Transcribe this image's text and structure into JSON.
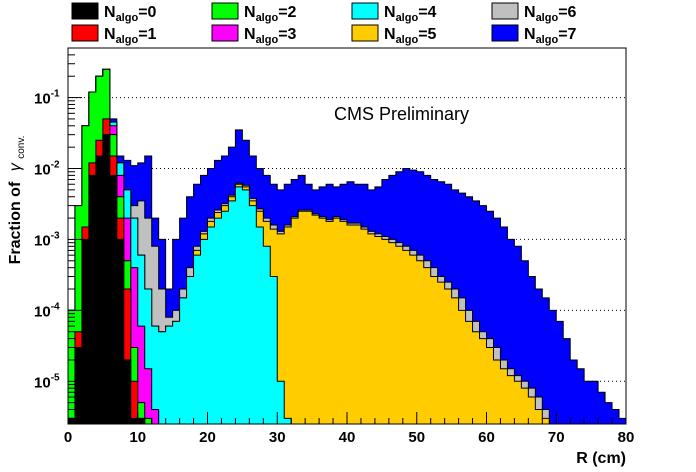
{
  "chart_data": {
    "type": "area",
    "title": "",
    "annotation": "CMS Preliminary",
    "xlabel": "R (cm)",
    "ylabel": "Fraction of",
    "ylabel_symbol": "γ",
    "ylabel_subscript": "conv.",
    "xlim": [
      0,
      80
    ],
    "ylim": [
      2.5e-06,
      0.5
    ],
    "yscale": "log",
    "grid": "horizontal dotted at decades",
    "legend_placement": "top",
    "x_ticks": [
      "0",
      "10",
      "20",
      "30",
      "40",
      "50",
      "60",
      "70",
      "80"
    ],
    "y_ticks": [
      {
        "value": 1e-05,
        "base": "10",
        "exp": "-5"
      },
      {
        "value": 0.0001,
        "base": "10",
        "exp": "-4"
      },
      {
        "value": 0.001,
        "base": "10",
        "exp": "-3"
      },
      {
        "value": 0.01,
        "base": "10",
        "exp": "-2"
      },
      {
        "value": 0.1,
        "base": "10",
        "exp": "-1"
      }
    ],
    "stacking": "cumulative",
    "series": [
      {
        "label_main": "N",
        "label_sub": "algo",
        "label_value": "=0",
        "color": "#000000",
        "points": [
          [
            0,
            3e-06
          ],
          [
            1,
            3e-05
          ],
          [
            2,
            0.001
          ],
          [
            3,
            0.008
          ],
          [
            4,
            0.015
          ],
          [
            5,
            0.03
          ],
          [
            6,
            0.008
          ],
          [
            7,
            0.001
          ],
          [
            8,
            2e-05
          ],
          [
            9,
            3e-06
          ],
          [
            10,
            3e-06
          ]
        ]
      },
      {
        "label_main": "N",
        "label_sub": "algo",
        "label_value": "=1",
        "color": "#ff0000",
        "points": [
          [
            0,
            3e-06
          ],
          [
            1,
            5e-05
          ],
          [
            2,
            0.0015
          ],
          [
            3,
            0.012
          ],
          [
            4,
            0.025
          ],
          [
            5,
            0.05
          ],
          [
            6,
            0.015
          ],
          [
            7,
            0.002
          ],
          [
            8,
            0.0002
          ],
          [
            9,
            1e-05
          ],
          [
            10,
            3e-06
          ]
        ]
      },
      {
        "label_main": "N",
        "label_sub": "algo",
        "label_value": "=2",
        "color": "#00ff00",
        "points": [
          [
            0,
            0.0001
          ],
          [
            1,
            0.003
          ],
          [
            2,
            0.04
          ],
          [
            3,
            0.12
          ],
          [
            4,
            0.2
          ],
          [
            5,
            0.25
          ],
          [
            6,
            0.03
          ],
          [
            7,
            0.004
          ],
          [
            8,
            0.0005
          ],
          [
            9,
            3e-05
          ],
          [
            10,
            5e-06
          ],
          [
            11,
            3e-06
          ]
        ]
      },
      {
        "label_main": "N",
        "label_sub": "algo",
        "label_value": "=3",
        "color": "#ff00ff",
        "points": [
          [
            0,
            0.0001
          ],
          [
            1,
            0.003
          ],
          [
            2,
            0.04
          ],
          [
            3,
            0.12
          ],
          [
            4,
            0.2
          ],
          [
            5,
            0.25
          ],
          [
            6,
            0.04
          ],
          [
            7,
            0.008
          ],
          [
            8,
            0.002
          ],
          [
            9,
            0.0004
          ],
          [
            10,
            6e-05
          ],
          [
            11,
            1.5e-05
          ],
          [
            12,
            4e-06
          ]
        ]
      },
      {
        "label_main": "N",
        "label_sub": "algo",
        "label_value": "=4",
        "color": "#00ffff",
        "points": [
          [
            0,
            0.0001
          ],
          [
            1,
            0.003
          ],
          [
            2,
            0.04
          ],
          [
            3,
            0.12
          ],
          [
            4,
            0.2
          ],
          [
            5,
            0.25
          ],
          [
            6,
            0.045
          ],
          [
            7,
            0.012
          ],
          [
            8,
            0.005
          ],
          [
            9,
            0.002
          ],
          [
            10,
            0.0006
          ],
          [
            11,
            0.0002
          ],
          [
            12,
            6e-05
          ],
          [
            13,
            5e-05
          ],
          [
            14,
            6e-05
          ],
          [
            15,
            7e-05
          ],
          [
            16,
            0.00015
          ],
          [
            17,
            0.0003
          ],
          [
            18,
            0.0006
          ],
          [
            19,
            0.001
          ],
          [
            20,
            0.0015
          ],
          [
            21,
            0.002
          ],
          [
            22,
            0.0025
          ],
          [
            23,
            0.0035
          ],
          [
            24,
            0.0055
          ],
          [
            25,
            0.005
          ],
          [
            26,
            0.003
          ],
          [
            27,
            0.0015
          ],
          [
            28,
            0.0008
          ],
          [
            29,
            0.0003
          ],
          [
            30,
            1e-05
          ],
          [
            31,
            3e-06
          ]
        ]
      },
      {
        "label_main": "N",
        "label_sub": "algo",
        "label_value": "=5",
        "color": "#ffcc00",
        "points": [
          [
            0,
            0.0001
          ],
          [
            1,
            0.003
          ],
          [
            2,
            0.04
          ],
          [
            3,
            0.12
          ],
          [
            4,
            0.2
          ],
          [
            5,
            0.25
          ],
          [
            6,
            0.045
          ],
          [
            7,
            0.012
          ],
          [
            8,
            0.005
          ],
          [
            9,
            0.002
          ],
          [
            10,
            0.0006
          ],
          [
            11,
            0.0002
          ],
          [
            12,
            6e-05
          ],
          [
            13,
            5e-05
          ],
          [
            14,
            6e-05
          ],
          [
            15,
            7e-05
          ],
          [
            16,
            0.00015
          ],
          [
            17,
            0.0003
          ],
          [
            18,
            0.0007
          ],
          [
            19,
            0.0012
          ],
          [
            20,
            0.0018
          ],
          [
            21,
            0.0024
          ],
          [
            22,
            0.003
          ],
          [
            23,
            0.004
          ],
          [
            24,
            0.006
          ],
          [
            25,
            0.0055
          ],
          [
            26,
            0.0035
          ],
          [
            27,
            0.0025
          ],
          [
            28,
            0.0018
          ],
          [
            29,
            0.0014
          ],
          [
            30,
            0.0012
          ],
          [
            31,
            0.0015
          ],
          [
            32,
            0.002
          ],
          [
            33,
            0.0025
          ],
          [
            34,
            0.0025
          ],
          [
            35,
            0.0022
          ],
          [
            36,
            0.002
          ],
          [
            37,
            0.0018
          ],
          [
            38,
            0.002
          ],
          [
            39,
            0.0018
          ],
          [
            40,
            0.0016
          ],
          [
            41,
            0.0016
          ],
          [
            42,
            0.0014
          ],
          [
            43,
            0.0012
          ],
          [
            44,
            0.0011
          ],
          [
            45,
            0.001
          ],
          [
            46,
            0.0009
          ],
          [
            47,
            0.0008
          ],
          [
            48,
            0.0007
          ],
          [
            49,
            0.0006
          ],
          [
            50,
            0.0005
          ],
          [
            51,
            0.0004
          ],
          [
            52,
            0.0003
          ],
          [
            53,
            0.00025
          ],
          [
            54,
            0.0002
          ],
          [
            55,
            0.00015
          ],
          [
            56,
            0.0001
          ],
          [
            57,
            7e-05
          ],
          [
            58,
            5e-05
          ],
          [
            59,
            4e-05
          ],
          [
            60,
            3e-05
          ],
          [
            61,
            2e-05
          ],
          [
            62,
            1.5e-05
          ],
          [
            63,
            1.2e-05
          ],
          [
            64,
            1e-05
          ],
          [
            65,
            8e-06
          ],
          [
            66,
            6e-06
          ],
          [
            67,
            4e-06
          ],
          [
            68,
            3e-06
          ]
        ]
      },
      {
        "label_main": "N",
        "label_sub": "algo",
        "label_value": "=6",
        "color": "#c0c0c0",
        "points": [
          [
            0,
            0.0001
          ],
          [
            1,
            0.003
          ],
          [
            2,
            0.04
          ],
          [
            3,
            0.12
          ],
          [
            4,
            0.2
          ],
          [
            5,
            0.25
          ],
          [
            6,
            0.045
          ],
          [
            7,
            0.012
          ],
          [
            8,
            0.005
          ],
          [
            9,
            0.003
          ],
          [
            10,
            0.0035
          ],
          [
            11,
            0.002
          ],
          [
            12,
            0.0008
          ],
          [
            13,
            0.0002
          ],
          [
            14,
            8e-05
          ],
          [
            15,
            0.0001
          ],
          [
            16,
            0.0002
          ],
          [
            17,
            0.0004
          ],
          [
            18,
            0.0008
          ],
          [
            19,
            0.0013
          ],
          [
            20,
            0.002
          ],
          [
            21,
            0.0026
          ],
          [
            22,
            0.0032
          ],
          [
            23,
            0.0042
          ],
          [
            24,
            0.0062
          ],
          [
            25,
            0.0058
          ],
          [
            26,
            0.0038
          ],
          [
            27,
            0.0027
          ],
          [
            28,
            0.002
          ],
          [
            29,
            0.0016
          ],
          [
            30,
            0.0013
          ],
          [
            31,
            0.0016
          ],
          [
            32,
            0.0021
          ],
          [
            33,
            0.0026
          ],
          [
            34,
            0.0026
          ],
          [
            35,
            0.0023
          ],
          [
            36,
            0.0021
          ],
          [
            37,
            0.0019
          ],
          [
            38,
            0.0021
          ],
          [
            39,
            0.0019
          ],
          [
            40,
            0.0017
          ],
          [
            41,
            0.0017
          ],
          [
            42,
            0.0015
          ],
          [
            43,
            0.0013
          ],
          [
            44,
            0.0012
          ],
          [
            45,
            0.0011
          ],
          [
            46,
            0.001
          ],
          [
            47,
            0.0009
          ],
          [
            48,
            0.0008
          ],
          [
            49,
            0.0007
          ],
          [
            50,
            0.0006
          ],
          [
            51,
            0.0005
          ],
          [
            52,
            0.0004
          ],
          [
            53,
            0.0003
          ],
          [
            54,
            0.00025
          ],
          [
            55,
            0.0002
          ],
          [
            56,
            0.00015
          ],
          [
            57,
            0.0001
          ],
          [
            58,
            7e-05
          ],
          [
            59,
            5e-05
          ],
          [
            60,
            4e-05
          ],
          [
            61,
            3e-05
          ],
          [
            62,
            2e-05
          ],
          [
            63,
            1.5e-05
          ],
          [
            64,
            1.2e-05
          ],
          [
            65,
            1e-05
          ],
          [
            66,
            8e-06
          ],
          [
            67,
            6e-06
          ],
          [
            68,
            4e-06
          ]
        ]
      },
      {
        "label_main": "N",
        "label_sub": "algo",
        "label_value": "=7",
        "color": "#0000ff",
        "points": [
          [
            0,
            0.0001
          ],
          [
            1,
            0.003
          ],
          [
            2,
            0.04
          ],
          [
            3,
            0.12
          ],
          [
            4,
            0.2
          ],
          [
            5,
            0.25
          ],
          [
            6,
            0.05
          ],
          [
            7,
            0.015
          ],
          [
            8,
            0.013
          ],
          [
            9,
            0.011
          ],
          [
            10,
            0.012
          ],
          [
            11,
            0.015
          ],
          [
            12,
            0.002
          ],
          [
            13,
            0.001
          ],
          [
            14,
            0.0002
          ],
          [
            15,
            0.001
          ],
          [
            16,
            0.002
          ],
          [
            17,
            0.004
          ],
          [
            18,
            0.006
          ],
          [
            19,
            0.008
          ],
          [
            20,
            0.01
          ],
          [
            21,
            0.013
          ],
          [
            22,
            0.015
          ],
          [
            23,
            0.02
          ],
          [
            24,
            0.035
          ],
          [
            25,
            0.025
          ],
          [
            26,
            0.015
          ],
          [
            27,
            0.01
          ],
          [
            28,
            0.008
          ],
          [
            29,
            0.006
          ],
          [
            30,
            0.005
          ],
          [
            31,
            0.006
          ],
          [
            32,
            0.007
          ],
          [
            33,
            0.008
          ],
          [
            34,
            0.006
          ],
          [
            35,
            0.005
          ],
          [
            36,
            0.0055
          ],
          [
            37,
            0.006
          ],
          [
            38,
            0.0055
          ],
          [
            39,
            0.006
          ],
          [
            40,
            0.0065
          ],
          [
            41,
            0.006
          ],
          [
            42,
            0.006
          ],
          [
            43,
            0.005
          ],
          [
            44,
            0.0055
          ],
          [
            45,
            0.007
          ],
          [
            46,
            0.008
          ],
          [
            47,
            0.009
          ],
          [
            48,
            0.01
          ],
          [
            49,
            0.0095
          ],
          [
            50,
            0.009
          ],
          [
            51,
            0.008
          ],
          [
            52,
            0.007
          ],
          [
            53,
            0.0065
          ],
          [
            54,
            0.006
          ],
          [
            55,
            0.005
          ],
          [
            56,
            0.0045
          ],
          [
            57,
            0.004
          ],
          [
            58,
            0.0035
          ],
          [
            59,
            0.003
          ],
          [
            60,
            0.0025
          ],
          [
            61,
            0.002
          ],
          [
            62,
            0.0015
          ],
          [
            63,
            0.001
          ],
          [
            64,
            0.0008
          ],
          [
            65,
            0.0005
          ],
          [
            66,
            0.0003
          ],
          [
            67,
            0.0002
          ],
          [
            68,
            0.00015
          ],
          [
            69,
            0.0001
          ],
          [
            70,
            7e-05
          ],
          [
            71,
            4e-05
          ],
          [
            72,
            2e-05
          ],
          [
            73,
            1.5e-05
          ],
          [
            74,
            1e-05
          ],
          [
            75,
            1e-05
          ],
          [
            76,
            7e-06
          ],
          [
            77,
            5e-06
          ],
          [
            78,
            4e-06
          ],
          [
            79,
            3e-06
          ],
          [
            80,
            3e-06
          ]
        ]
      }
    ]
  }
}
